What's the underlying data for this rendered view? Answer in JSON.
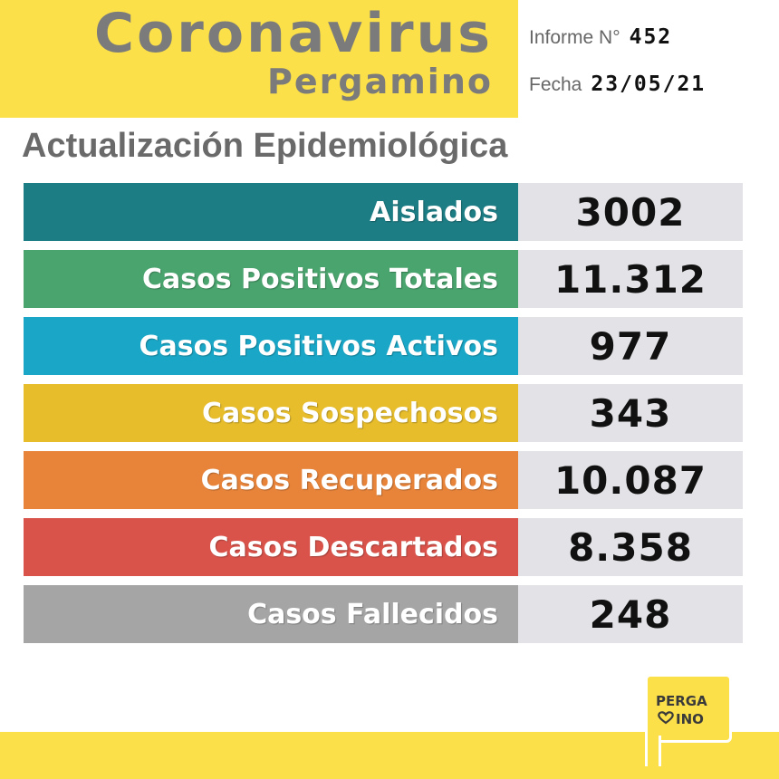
{
  "header": {
    "title": "Coronavirus",
    "subtitle": "Pergamino",
    "report_label": "Informe N°",
    "report_number": "452",
    "date_label": "Fecha",
    "date_value": "23/05/21"
  },
  "section_title": "Actualización Epidemiológica",
  "stats": [
    {
      "label": "Aislados",
      "value": "3002",
      "color": "#1d7d84"
    },
    {
      "label": "Casos Positivos Totales",
      "value": "11.312",
      "color": "#4aa46e"
    },
    {
      "label": "Casos Positivos Activos",
      "value": "977",
      "color": "#1aa7c7"
    },
    {
      "label": "Casos Sospechosos",
      "value": "343",
      "color": "#e7bd2b"
    },
    {
      "label": "Casos Recuperados",
      "value": "10.087",
      "color": "#e8843a"
    },
    {
      "label": "Casos Descartados",
      "value": "8.358",
      "color": "#d9534b"
    },
    {
      "label": "Casos Fallecidos",
      "value": "248",
      "color": "#a5a5a5"
    }
  ],
  "logo": {
    "line1": "PERGA",
    "line2": "INO"
  },
  "colors": {
    "brand_yellow": "#fbe04a",
    "title_gray": "#7b7b7b",
    "value_bg": "#e3e3e7"
  }
}
